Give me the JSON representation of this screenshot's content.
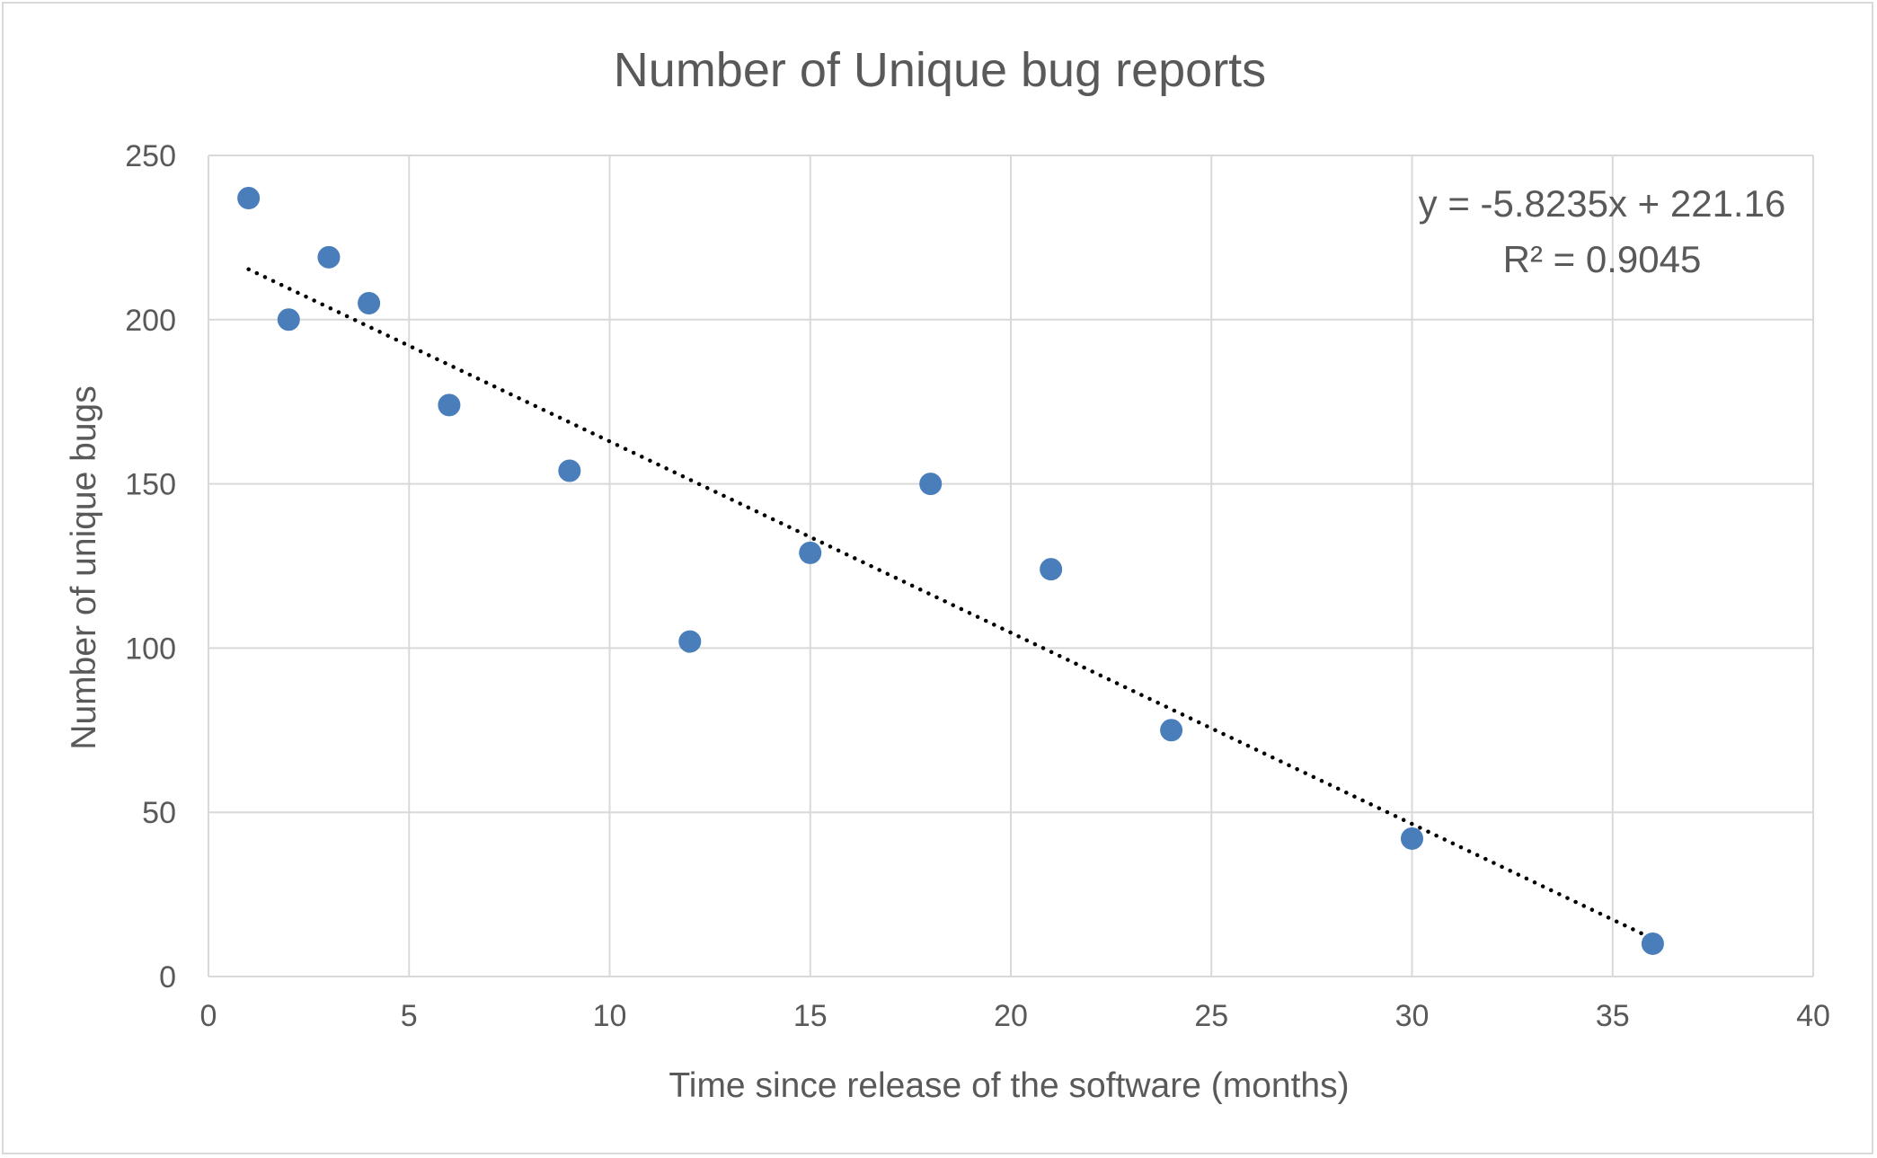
{
  "chart_data": {
    "type": "scatter",
    "title": "Number of Unique bug reports",
    "xlabel": "Time since release of the software (months)",
    "ylabel": "Number of unique bugs",
    "xlim": [
      0,
      40
    ],
    "ylim": [
      0,
      250
    ],
    "x_ticks": [
      0,
      5,
      10,
      15,
      20,
      25,
      30,
      35,
      40
    ],
    "y_ticks": [
      0,
      50,
      100,
      150,
      200,
      250
    ],
    "grid": true,
    "colors": {
      "points": "#4a7ebb",
      "grid": "#d9d9d9",
      "text": "#595959",
      "trendline": "#000000"
    },
    "series": [
      {
        "x": [
          1,
          2,
          3,
          4,
          6,
          9,
          12,
          15,
          18,
          21,
          24,
          30,
          36
        ],
        "y": [
          237,
          200,
          219,
          205,
          174,
          154,
          102,
          129,
          150,
          124,
          75,
          42,
          10
        ]
      }
    ],
    "trendline": {
      "type": "linear",
      "slope": -5.8235,
      "intercept": 221.16,
      "x_range": [
        1,
        36
      ],
      "equation_label": "y = -5.8235x + 221.16",
      "r2_label": "R² = 0.9045"
    }
  }
}
